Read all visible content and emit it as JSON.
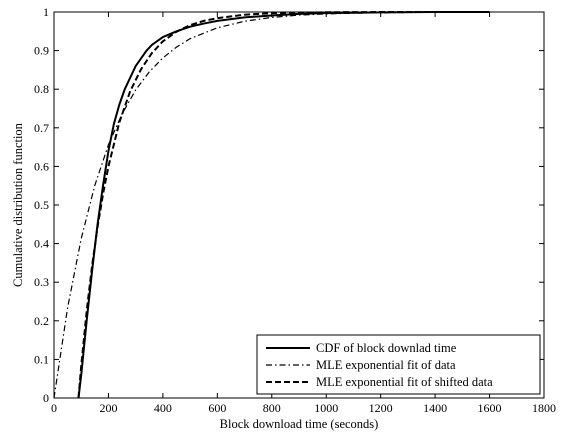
{
  "chart_data": {
    "type": "line",
    "title": "",
    "xlabel": "Block download time (seconds)",
    "ylabel": "Cumulative distribution function",
    "xlim": [
      0,
      1800
    ],
    "ylim": [
      0,
      1
    ],
    "xticks": [
      "0",
      "200",
      "400",
      "600",
      "800",
      "1000",
      "1200",
      "1400",
      "1600",
      "1800"
    ],
    "yticks": [
      "0",
      "0.1",
      "0.2",
      "0.3",
      "0.4",
      "0.5",
      "0.6",
      "0.7",
      "0.8",
      "0.9",
      "1"
    ],
    "grid": false,
    "legend_position": "bottom-right",
    "series": [
      {
        "name": "CDF of block downlad time",
        "style": "solid",
        "x": [
          90,
          100,
          120,
          140,
          160,
          180,
          200,
          220,
          240,
          260,
          280,
          300,
          320,
          340,
          360,
          380,
          400,
          450,
          500,
          550,
          600,
          700,
          800,
          900,
          1000,
          1100,
          1200,
          1400,
          1600
        ],
        "y": [
          0.0,
          0.06,
          0.2,
          0.33,
          0.45,
          0.55,
          0.64,
          0.71,
          0.76,
          0.8,
          0.83,
          0.86,
          0.88,
          0.9,
          0.915,
          0.925,
          0.935,
          0.95,
          0.962,
          0.97,
          0.977,
          0.986,
          0.991,
          0.995,
          0.997,
          0.998,
          0.999,
          1.0,
          1.0
        ]
      },
      {
        "name": "MLE exponential fit of data",
        "style": "dashdot",
        "x": [
          0,
          50,
          100,
          150,
          200,
          250,
          300,
          350,
          400,
          450,
          500,
          600,
          700,
          800,
          900,
          1000,
          1100,
          1200,
          1300,
          1400,
          1500,
          1600
        ],
        "y": [
          0.0,
          0.234,
          0.413,
          0.551,
          0.656,
          0.736,
          0.798,
          0.845,
          0.881,
          0.909,
          0.931,
          0.959,
          0.976,
          0.986,
          0.992,
          0.995,
          0.997,
          0.998,
          0.9989,
          0.9994,
          0.9996,
          0.9998
        ]
      },
      {
        "name": "MLE exponential fit of shifted data",
        "style": "dashed",
        "x": [
          90,
          100,
          120,
          140,
          160,
          180,
          200,
          240,
          280,
          320,
          360,
          400,
          450,
          500,
          550,
          600,
          700,
          800,
          900,
          1000,
          1100,
          1200,
          1400,
          1600
        ],
        "y": [
          0.0,
          0.083,
          0.225,
          0.343,
          0.443,
          0.528,
          0.6,
          0.714,
          0.795,
          0.852,
          0.894,
          0.924,
          0.949,
          0.966,
          0.977,
          0.984,
          0.993,
          0.997,
          0.998,
          0.9993,
          0.9997,
          0.9999,
          1.0,
          1.0
        ]
      }
    ]
  }
}
